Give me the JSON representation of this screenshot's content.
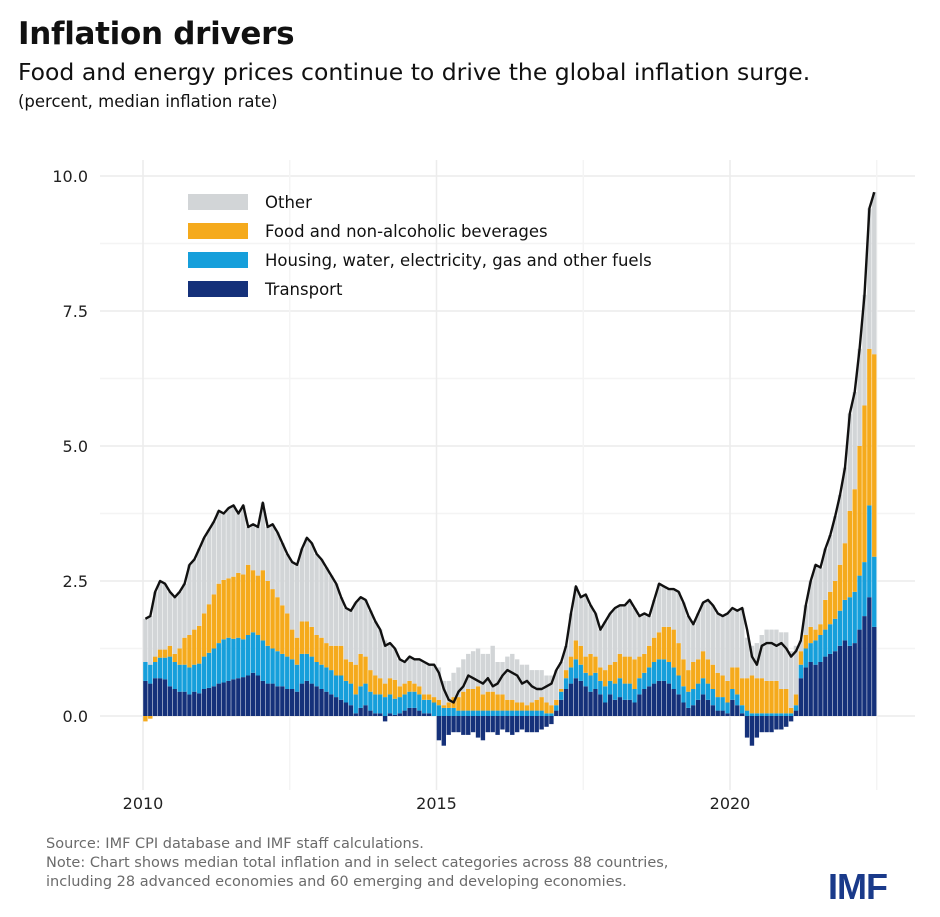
{
  "header": {
    "title": "Inflation drivers",
    "subtitle": "Food and energy prices continue to drive the global inflation surge.",
    "units": "(percent, median inflation rate)"
  },
  "footer": {
    "source": "Source: IMF CPI database and IMF staff calculations.",
    "note1": "Note: Chart shows median total inflation and in select categories across 88 countries,",
    "note2": "including 28 advanced economies and 60 emerging and developing economies.",
    "logo": "IMF"
  },
  "chart_data": {
    "type": "bar",
    "stacked": true,
    "frequency": "monthly",
    "start": "2010-01",
    "end": "2022-06",
    "ylim": [
      -1.0,
      10.3
    ],
    "yticks": [
      "0.0",
      "2.5",
      "5.0",
      "7.5",
      "10.0"
    ],
    "xticks": [
      "2010",
      "2015",
      "2020"
    ],
    "grid": true,
    "legend_position": "top-left",
    "colors": {
      "Other": "#d2d5d7",
      "Food and non-alcoholic beverages": "#f5aa1c",
      "Housing, water, electricity, gas and other fuels": "#169fdb",
      "Transport": "#15317a",
      "total": "#111111"
    },
    "legend": [
      "Other",
      "Food and non-alcoholic beverages",
      "Housing, water, electricity, gas and other fuels",
      "Transport"
    ],
    "series": [
      {
        "name": "Transport",
        "values": [
          0.65,
          0.6,
          0.7,
          0.7,
          0.68,
          0.55,
          0.5,
          0.45,
          0.45,
          0.4,
          0.45,
          0.42,
          0.5,
          0.52,
          0.55,
          0.6,
          0.62,
          0.65,
          0.68,
          0.7,
          0.72,
          0.75,
          0.8,
          0.75,
          0.65,
          0.6,
          0.6,
          0.55,
          0.55,
          0.5,
          0.5,
          0.45,
          0.6,
          0.65,
          0.6,
          0.55,
          0.5,
          0.45,
          0.4,
          0.35,
          0.3,
          0.25,
          0.2,
          0.05,
          0.15,
          0.2,
          0.1,
          0.05,
          0.05,
          -0.1,
          0.05,
          0.02,
          0.05,
          0.1,
          0.15,
          0.15,
          0.1,
          0.05,
          0.05,
          0.0,
          -0.45,
          -0.55,
          -0.35,
          -0.3,
          -0.3,
          -0.35,
          -0.35,
          -0.3,
          -0.4,
          -0.45,
          -0.3,
          -0.3,
          -0.35,
          -0.25,
          -0.3,
          -0.35,
          -0.3,
          -0.25,
          -0.3,
          -0.3,
          -0.3,
          -0.25,
          -0.2,
          -0.15,
          0.1,
          0.3,
          0.5,
          0.6,
          0.7,
          0.65,
          0.55,
          0.45,
          0.5,
          0.4,
          0.25,
          0.4,
          0.3,
          0.35,
          0.3,
          0.3,
          0.25,
          0.4,
          0.5,
          0.55,
          0.6,
          0.65,
          0.65,
          0.6,
          0.5,
          0.4,
          0.25,
          0.15,
          0.2,
          0.3,
          0.4,
          0.3,
          0.2,
          0.1,
          0.1,
          0.05,
          0.3,
          0.2,
          0.05,
          -0.4,
          -0.55,
          -0.4,
          -0.3,
          -0.3,
          -0.3,
          -0.25,
          -0.25,
          -0.2,
          -0.1,
          0.1,
          0.7,
          0.9,
          1.0,
          0.95,
          1.0,
          1.1,
          1.15,
          1.2,
          1.3,
          1.4,
          1.3,
          1.35,
          1.6,
          1.85,
          2.2,
          1.65
        ]
      },
      {
        "name": "Housing, water, electricity, gas and other fuels",
        "values": [
          0.35,
          0.35,
          0.3,
          0.38,
          0.4,
          0.55,
          0.5,
          0.5,
          0.5,
          0.5,
          0.5,
          0.55,
          0.6,
          0.65,
          0.7,
          0.75,
          0.8,
          0.8,
          0.75,
          0.75,
          0.7,
          0.75,
          0.75,
          0.75,
          0.75,
          0.7,
          0.65,
          0.65,
          0.6,
          0.6,
          0.55,
          0.5,
          0.55,
          0.5,
          0.5,
          0.45,
          0.45,
          0.45,
          0.45,
          0.4,
          0.45,
          0.4,
          0.4,
          0.35,
          0.4,
          0.4,
          0.35,
          0.35,
          0.35,
          0.35,
          0.35,
          0.3,
          0.3,
          0.3,
          0.3,
          0.3,
          0.3,
          0.25,
          0.25,
          0.25,
          0.2,
          0.15,
          0.15,
          0.15,
          0.1,
          0.1,
          0.1,
          0.1,
          0.1,
          0.1,
          0.1,
          0.1,
          0.1,
          0.1,
          0.1,
          0.1,
          0.1,
          0.1,
          0.1,
          0.1,
          0.1,
          0.1,
          0.05,
          0.05,
          0.1,
          0.15,
          0.2,
          0.3,
          0.35,
          0.3,
          0.25,
          0.3,
          0.3,
          0.25,
          0.3,
          0.25,
          0.3,
          0.35,
          0.3,
          0.3,
          0.25,
          0.3,
          0.3,
          0.35,
          0.4,
          0.4,
          0.4,
          0.4,
          0.4,
          0.35,
          0.3,
          0.3,
          0.3,
          0.3,
          0.3,
          0.3,
          0.3,
          0.25,
          0.25,
          0.2,
          0.2,
          0.2,
          0.15,
          0.1,
          0.05,
          0.05,
          0.05,
          0.05,
          0.05,
          0.05,
          0.05,
          0.05,
          0.05,
          0.1,
          0.25,
          0.35,
          0.35,
          0.45,
          0.5,
          0.5,
          0.55,
          0.6,
          0.65,
          0.75,
          0.9,
          0.95,
          1.0,
          1.0,
          1.7,
          1.3
        ]
      },
      {
        "name": "Food and non-alcoholic beverages",
        "values": [
          -0.1,
          -0.05,
          0.1,
          0.15,
          0.15,
          0.2,
          0.15,
          0.3,
          0.5,
          0.6,
          0.65,
          0.7,
          0.8,
          0.9,
          1.0,
          1.1,
          1.1,
          1.1,
          1.15,
          1.2,
          1.2,
          1.3,
          1.15,
          1.1,
          1.3,
          1.2,
          1.1,
          1.0,
          0.9,
          0.8,
          0.55,
          0.5,
          0.6,
          0.6,
          0.55,
          0.5,
          0.5,
          0.45,
          0.45,
          0.55,
          0.55,
          0.4,
          0.4,
          0.55,
          0.6,
          0.5,
          0.4,
          0.35,
          0.3,
          0.25,
          0.3,
          0.35,
          0.2,
          0.2,
          0.2,
          0.15,
          0.15,
          0.1,
          0.1,
          0.1,
          0.1,
          0.05,
          0.1,
          0.2,
          0.25,
          0.35,
          0.4,
          0.4,
          0.45,
          0.3,
          0.35,
          0.35,
          0.3,
          0.3,
          0.2,
          0.2,
          0.15,
          0.15,
          0.1,
          0.15,
          0.2,
          0.25,
          0.2,
          0.15,
          0.1,
          0.05,
          0.15,
          0.2,
          0.35,
          0.35,
          0.3,
          0.4,
          0.3,
          0.25,
          0.3,
          0.3,
          0.4,
          0.45,
          0.5,
          0.5,
          0.55,
          0.4,
          0.35,
          0.4,
          0.45,
          0.5,
          0.6,
          0.65,
          0.7,
          0.6,
          0.5,
          0.4,
          0.5,
          0.45,
          0.5,
          0.45,
          0.45,
          0.45,
          0.4,
          0.4,
          0.4,
          0.5,
          0.5,
          0.6,
          0.7,
          0.65,
          0.65,
          0.6,
          0.6,
          0.6,
          0.45,
          0.45,
          0.1,
          0.2,
          0.25,
          0.25,
          0.3,
          0.2,
          0.2,
          0.55,
          0.6,
          0.7,
          0.85,
          1.05,
          1.6,
          1.9,
          2.4,
          2.9,
          2.9,
          3.75
        ]
      },
      {
        "name": "Other",
        "values": [
          0.8,
          0.9,
          1.2,
          1.27,
          1.22,
          1.0,
          1.05,
          1.05,
          1.0,
          1.3,
          1.3,
          1.43,
          1.4,
          1.38,
          1.35,
          1.35,
          1.23,
          1.3,
          1.32,
          1.1,
          1.28,
          0.7,
          0.85,
          0.9,
          1.25,
          1.0,
          1.2,
          1.2,
          1.15,
          1.1,
          1.25,
          1.35,
          1.35,
          1.55,
          1.55,
          1.5,
          1.45,
          1.4,
          1.3,
          1.15,
          0.9,
          0.95,
          0.95,
          1.15,
          1.05,
          1.05,
          1.1,
          1.0,
          0.9,
          0.8,
          0.65,
          0.58,
          0.5,
          0.4,
          0.45,
          0.45,
          0.5,
          0.6,
          0.55,
          0.6,
          0.6,
          0.45,
          0.4,
          0.45,
          0.55,
          0.6,
          0.65,
          0.7,
          0.7,
          0.75,
          0.7,
          0.85,
          0.6,
          0.6,
          0.8,
          0.85,
          0.8,
          0.7,
          0.75,
          0.6,
          0.55,
          0.5,
          0.5,
          0.55,
          0.55,
          0.5,
          0.45,
          0.8,
          1.0,
          0.9,
          1.15,
          0.9,
          0.8,
          0.7,
          0.9,
          0.95,
          1.0,
          0.9,
          0.95,
          1.05,
          0.95,
          0.75,
          0.75,
          0.55,
          0.7,
          0.9,
          0.75,
          0.7,
          0.75,
          0.95,
          1.05,
          1.0,
          0.7,
          0.85,
          0.9,
          1.1,
          1.1,
          1.1,
          1.1,
          1.25,
          1.1,
          1.05,
          1.3,
          0.75,
          0.55,
          0.65,
          0.8,
          0.95,
          0.95,
          0.95,
          1.05,
          1.05,
          1.05,
          0.9,
          0.2,
          0.55,
          0.85,
          1.2,
          1.05,
          0.95,
          1.05,
          1.2,
          1.3,
          1.4,
          1.8,
          1.8,
          1.8,
          2.05,
          2.6,
          3.0
        ]
      }
    ],
    "total": {
      "type": "line",
      "values": [
        1.8,
        1.85,
        2.3,
        2.5,
        2.45,
        2.3,
        2.2,
        2.3,
        2.45,
        2.8,
        2.9,
        3.1,
        3.3,
        3.45,
        3.6,
        3.8,
        3.75,
        3.85,
        3.9,
        3.75,
        3.9,
        3.5,
        3.55,
        3.5,
        3.95,
        3.5,
        3.55,
        3.4,
        3.2,
        3.0,
        2.85,
        2.8,
        3.1,
        3.3,
        3.2,
        3.0,
        2.9,
        2.75,
        2.6,
        2.45,
        2.2,
        2.0,
        1.95,
        2.1,
        2.2,
        2.15,
        1.95,
        1.75,
        1.6,
        1.3,
        1.35,
        1.25,
        1.05,
        1.0,
        1.1,
        1.05,
        1.05,
        1.0,
        0.95,
        0.95,
        0.8,
        0.5,
        0.3,
        0.25,
        0.45,
        0.55,
        0.75,
        0.7,
        0.65,
        0.6,
        0.7,
        0.55,
        0.6,
        0.75,
        0.85,
        0.8,
        0.75,
        0.6,
        0.65,
        0.55,
        0.5,
        0.5,
        0.55,
        0.6,
        0.85,
        1.0,
        1.3,
        1.9,
        2.4,
        2.2,
        2.25,
        2.05,
        1.9,
        1.6,
        1.75,
        1.9,
        2.0,
        2.05,
        2.05,
        2.15,
        2.0,
        1.85,
        1.9,
        1.85,
        2.15,
        2.45,
        2.4,
        2.35,
        2.35,
        2.3,
        2.1,
        1.85,
        1.7,
        1.9,
        2.1,
        2.15,
        2.05,
        1.9,
        1.85,
        1.9,
        2.0,
        1.95,
        2.0,
        1.6,
        1.1,
        0.95,
        1.3,
        1.35,
        1.35,
        1.3,
        1.35,
        1.25,
        1.1,
        1.2,
        1.4,
        2.05,
        2.5,
        2.8,
        2.75,
        3.1,
        3.35,
        3.7,
        4.1,
        4.6,
        5.6,
        6.0,
        6.8,
        7.8,
        9.4,
        9.7
      ]
    }
  }
}
